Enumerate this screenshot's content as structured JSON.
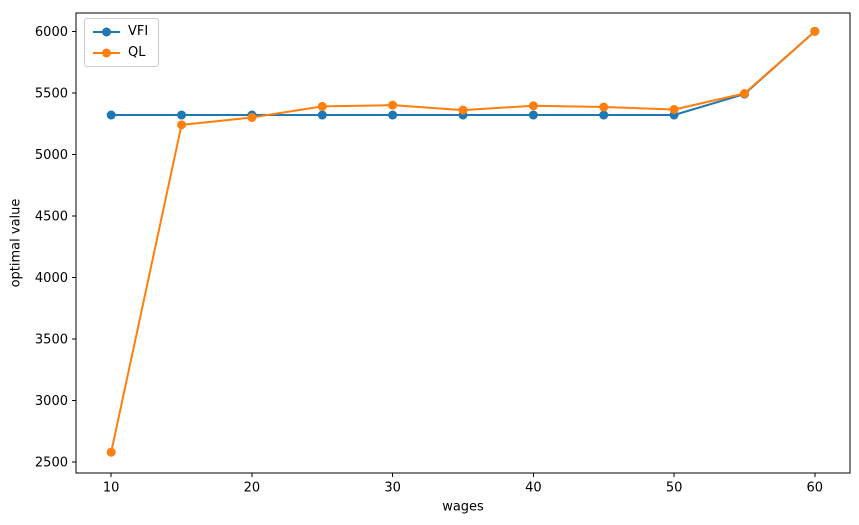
{
  "figure": {
    "background": "#ffffff",
    "text_color": "#000000",
    "spine_color": "#000000",
    "legend_border_color": "#cccccc"
  },
  "chart_data": {
    "type": "line",
    "title": "",
    "xlabel": "wages",
    "ylabel": "optimal value",
    "x": [
      10,
      15,
      20,
      25,
      30,
      35,
      40,
      45,
      50,
      55,
      60
    ],
    "series": [
      {
        "name": "VFI",
        "color": "#1f77b4",
        "values": [
          5320,
          5320,
          5320,
          5320,
          5320,
          5320,
          5320,
          5320,
          5320,
          5490,
          6000
        ]
      },
      {
        "name": "QL",
        "color": "#ff7f0e",
        "values": [
          2580,
          5240,
          5300,
          5390,
          5400,
          5360,
          5395,
          5385,
          5365,
          5495,
          6000
        ]
      }
    ],
    "xlim": [
      7.5,
      62.5
    ],
    "ylim": [
      2411,
      6149
    ],
    "xticks": [
      10,
      20,
      30,
      40,
      50,
      60
    ],
    "yticks": [
      2500,
      3000,
      3500,
      4000,
      4500,
      5000,
      5500,
      6000
    ],
    "grid": false,
    "legend": {
      "position": "upper left",
      "entries": [
        "VFI",
        "QL"
      ]
    },
    "marker": "circle",
    "line_width": 2,
    "marker_radius": 4.5
  }
}
